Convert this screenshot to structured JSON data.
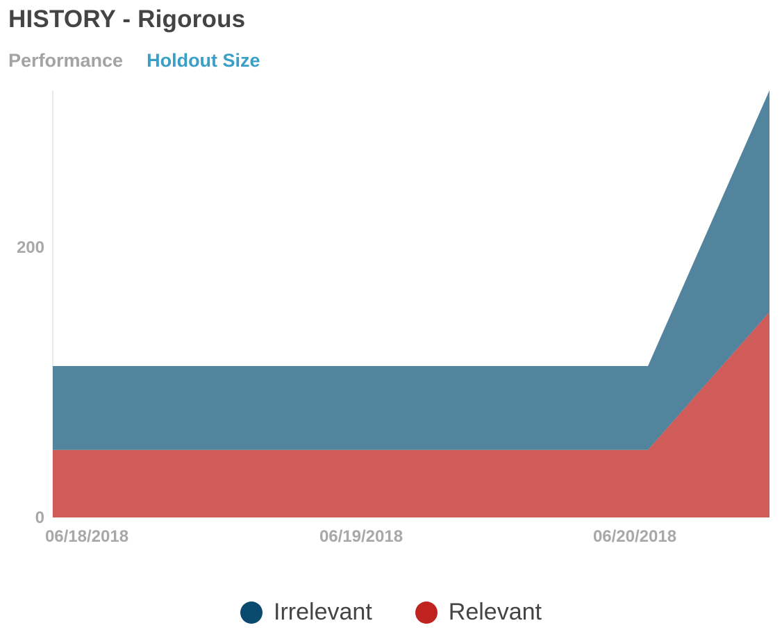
{
  "header": {
    "title": "HISTORY - Rigorous"
  },
  "tabs": [
    {
      "label": "Performance",
      "active": false
    },
    {
      "label": "Holdout Size",
      "active": true
    }
  ],
  "chart_data": {
    "type": "area",
    "stacked": true,
    "title": "",
    "xlabel": "",
    "ylabel": "",
    "x_ticks": [
      "06/18/2018",
      "06/19/2018",
      "06/20/2018"
    ],
    "y_ticks": [
      0,
      200
    ],
    "ylim": [
      0,
      316
    ],
    "grid": false,
    "legend": "bottom-center",
    "x": [
      "06/18/2018",
      "06/19/2018",
      "06/20/2018",
      "06/20/2018 +10h"
    ],
    "series": [
      {
        "name": "Relevant",
        "color": "#d05c5a",
        "legend_color": "#c0231f",
        "values": [
          50,
          50,
          50,
          152
        ]
      },
      {
        "name": "Irrelevant",
        "color": "#53849d",
        "legend_color": "#0b4a6f",
        "values": [
          62,
          62,
          62,
          164
        ]
      }
    ],
    "legend_order": [
      "Irrelevant",
      "Relevant"
    ]
  }
}
